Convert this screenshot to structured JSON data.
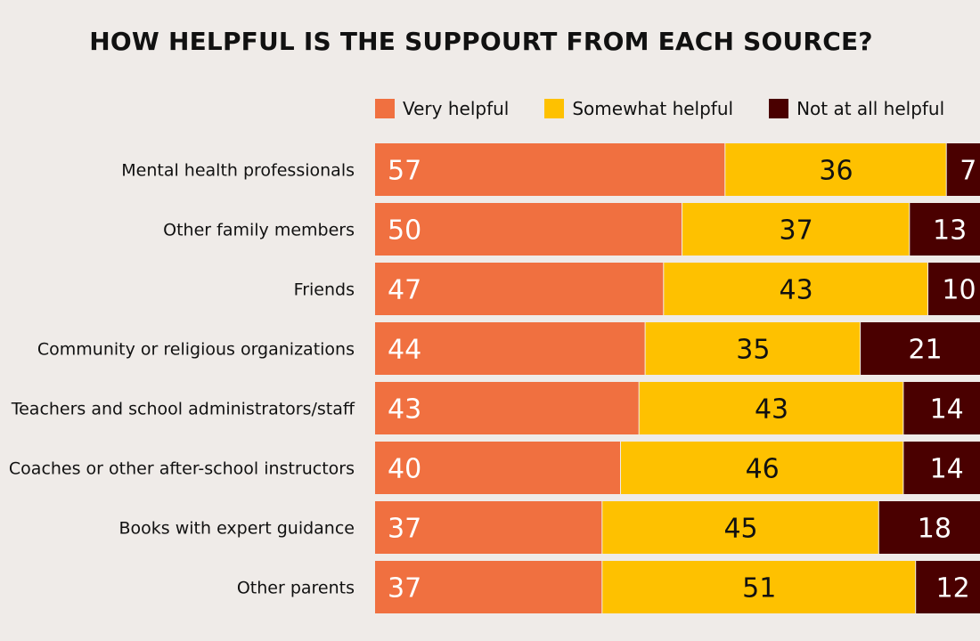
{
  "colors": {
    "very": "#f07040",
    "somewhat": "#fec100",
    "not": "#4a0000",
    "background": "#efebe8"
  },
  "legend": {
    "very_label": "Very helpful",
    "somewhat_label": "Somewhat helpful",
    "not_label": "Not at all helpful"
  },
  "chart_data": {
    "type": "bar",
    "orientation": "horizontal",
    "stacked": true,
    "title": "HOW HELPFUL IS THE SUPPOURT FROM EACH SOURCE?",
    "legend_position": "top",
    "grid": false,
    "categories": [
      "Mental health professionals",
      "Other family members",
      "Friends",
      "Community or religious organizations",
      "Teachers and school administrators/staff",
      "Coaches or other after-school instructors",
      "Books with expert guidance",
      "Other parents"
    ],
    "series": [
      {
        "name": "Very helpful",
        "values": [
          57,
          50,
          47,
          44,
          43,
          40,
          37,
          37
        ]
      },
      {
        "name": "Somewhat helpful",
        "values": [
          36,
          37,
          43,
          35,
          43,
          46,
          45,
          51
        ]
      },
      {
        "name": "Not at all helpful",
        "values": [
          7,
          13,
          10,
          21,
          14,
          14,
          18,
          12
        ]
      }
    ]
  }
}
